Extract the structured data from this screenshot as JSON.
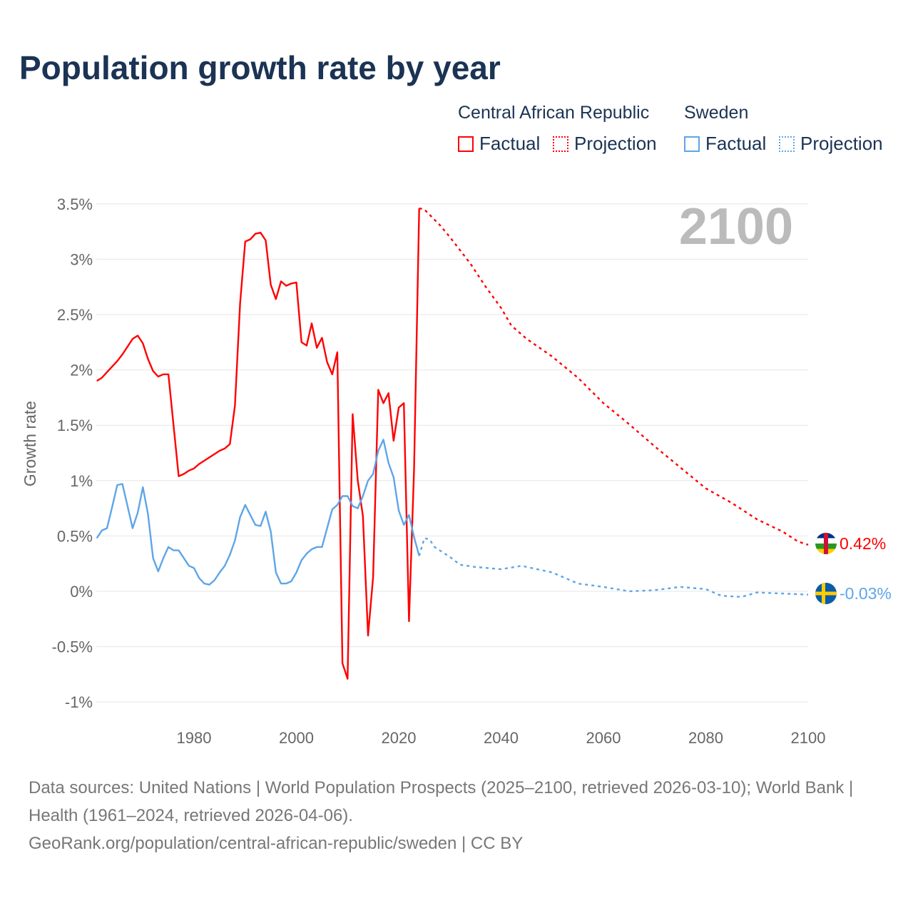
{
  "title": "Population growth rate by year",
  "legend": {
    "groups": [
      {
        "name": "Central African Republic",
        "factual": "Factual",
        "projection": "Projection",
        "color": "#ff0000"
      },
      {
        "name": "Sweden",
        "factual": "Factual",
        "projection": "Projection",
        "color": "#5ea5e8"
      }
    ]
  },
  "year_label": "2100",
  "footer": {
    "sources": "Data sources: United Nations | World Population Prospects (2025–2100, retrieved 2026-03-10); World Bank | Health (1961–2024, retrieved 2026-04-06).",
    "link": "GeoRank.org/population/central-african-republic/sweden | CC BY"
  },
  "chart_data": {
    "type": "line",
    "title": "Population growth rate by year",
    "xlabel": "",
    "ylabel": "Growth rate",
    "xlim": [
      1961,
      2100
    ],
    "ylim": [
      -1.2,
      3.6
    ],
    "x_ticks": [
      1980,
      2000,
      2020,
      2040,
      2060,
      2080,
      2100
    ],
    "y_ticks": [
      {
        "v": 3.5,
        "label": "3.5%"
      },
      {
        "v": 3,
        "label": "3%"
      },
      {
        "v": 2.5,
        "label": "2.5%"
      },
      {
        "v": 2,
        "label": "2%"
      },
      {
        "v": 1.5,
        "label": "1.5%"
      },
      {
        "v": 1,
        "label": "1%"
      },
      {
        "v": 0.5,
        "label": "0.5%"
      },
      {
        "v": 0,
        "label": "0%"
      },
      {
        "v": -0.5,
        "label": "-0.5%"
      },
      {
        "v": -1,
        "label": "-1%"
      }
    ],
    "grid": true,
    "legend_position": "top-right",
    "series": [
      {
        "name": "Central African Republic",
        "kind": "Factual",
        "color": "#ff0000",
        "dashed": false,
        "start_year": 1961,
        "values": [
          1.9,
          1.93,
          1.98,
          2.03,
          2.08,
          2.14,
          2.21,
          2.28,
          2.31,
          2.24,
          2.1,
          1.99,
          1.94,
          1.96,
          1.96,
          1.5,
          1.04,
          1.06,
          1.09,
          1.11,
          1.15,
          1.18,
          1.21,
          1.24,
          1.27,
          1.29,
          1.33,
          1.68,
          2.6,
          3.16,
          3.18,
          3.23,
          3.24,
          3.17,
          2.77,
          2.64,
          2.8,
          2.76,
          2.78,
          2.79,
          2.25,
          2.22,
          2.42,
          2.2,
          2.29,
          2.07,
          1.96,
          2.16,
          -0.65,
          -0.79,
          1.6,
          1.0,
          0.68,
          -0.4,
          0.13,
          1.82,
          1.7,
          1.79,
          1.36,
          1.66,
          1.7,
          -0.27,
          1.1,
          3.46
        ]
      },
      {
        "name": "Central African Republic",
        "kind": "Projection",
        "color": "#ff0000",
        "dashed": true,
        "x": [
          2024,
          2025,
          2028,
          2030,
          2034,
          2037,
          2040,
          2042,
          2045,
          2050,
          2055,
          2060,
          2065,
          2070,
          2075,
          2080,
          2085,
          2090,
          2095,
          2098,
          2100
        ],
        "values": [
          3.46,
          3.45,
          3.31,
          3.2,
          2.96,
          2.75,
          2.56,
          2.4,
          2.28,
          2.12,
          1.93,
          1.7,
          1.51,
          1.31,
          1.12,
          0.93,
          0.8,
          0.65,
          0.54,
          0.45,
          0.42
        ]
      },
      {
        "name": "Sweden",
        "kind": "Factual",
        "color": "#5ea5e8",
        "dashed": false,
        "start_year": 1961,
        "values": [
          0.48,
          0.55,
          0.57,
          0.76,
          0.96,
          0.97,
          0.77,
          0.57,
          0.71,
          0.94,
          0.7,
          0.3,
          0.18,
          0.3,
          0.4,
          0.37,
          0.37,
          0.3,
          0.23,
          0.21,
          0.12,
          0.07,
          0.06,
          0.1,
          0.17,
          0.23,
          0.33,
          0.46,
          0.67,
          0.78,
          0.69,
          0.6,
          0.59,
          0.72,
          0.54,
          0.17,
          0.07,
          0.07,
          0.09,
          0.17,
          0.28,
          0.34,
          0.38,
          0.4,
          0.4,
          0.57,
          0.74,
          0.78,
          0.86,
          0.86,
          0.77,
          0.75,
          0.86,
          1.0,
          1.06,
          1.27,
          1.37,
          1.16,
          1.03,
          0.73,
          0.6,
          0.69,
          0.49,
          0.32
        ]
      },
      {
        "name": "Sweden",
        "kind": "Projection",
        "color": "#5ea5e8",
        "dashed": true,
        "x": [
          2024,
          2025,
          2026,
          2027,
          2030,
          2032,
          2035,
          2040,
          2044,
          2050,
          2055,
          2060,
          2065,
          2070,
          2075,
          2080,
          2083,
          2087,
          2090,
          2095,
          2100
        ],
        "values": [
          0.32,
          0.48,
          0.47,
          0.4,
          0.31,
          0.24,
          0.22,
          0.2,
          0.23,
          0.17,
          0.07,
          0.04,
          0.0,
          0.01,
          0.04,
          0.02,
          -0.04,
          -0.05,
          -0.01,
          -0.02,
          -0.03
        ]
      }
    ],
    "end_labels": [
      {
        "country": "Central African Republic",
        "label": "0.42%",
        "value": 0.42,
        "color": "#ff0000",
        "flag": "car-flag-icon"
      },
      {
        "country": "Sweden",
        "label": "-0.03%",
        "value": -0.03,
        "color": "#5ea5e8",
        "flag": "sweden-flag-icon"
      }
    ]
  }
}
